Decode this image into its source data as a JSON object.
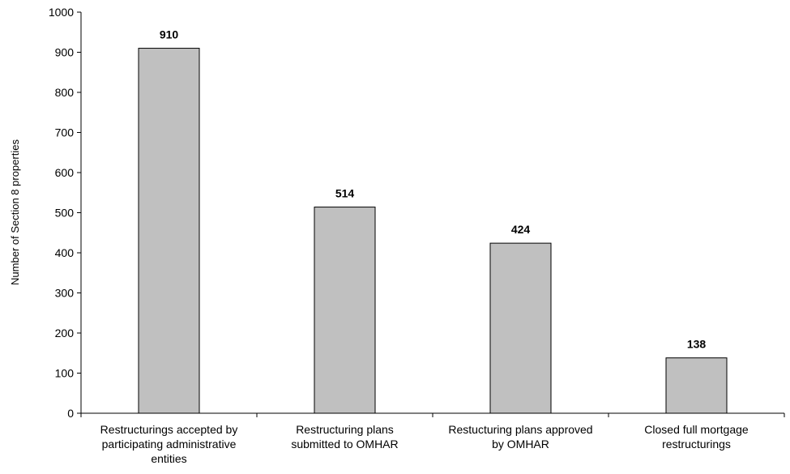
{
  "chart_data": {
    "type": "bar",
    "categories": [
      [
        "Restructurings accepted by",
        "participating administrative",
        "entities"
      ],
      [
        "Restructuring plans",
        "submitted to OMHAR"
      ],
      [
        "Restucturing plans approved",
        "by OMHAR"
      ],
      [
        "Closed full mortgage",
        "restructurings"
      ]
    ],
    "values": [
      910,
      514,
      424,
      138
    ],
    "data_labels": [
      "910",
      "514",
      "424",
      "138"
    ],
    "title": "",
    "xlabel": "",
    "ylabel": "Number of Section 8 properties",
    "ylim": [
      0,
      1000
    ],
    "yticks": [
      0,
      100,
      200,
      300,
      400,
      500,
      600,
      700,
      800,
      900,
      1000
    ],
    "grid": false,
    "legend": "none",
    "colors": {
      "bar_fill": "#c0c0c0",
      "bar_stroke": "#000000",
      "axis": "#000000"
    }
  }
}
